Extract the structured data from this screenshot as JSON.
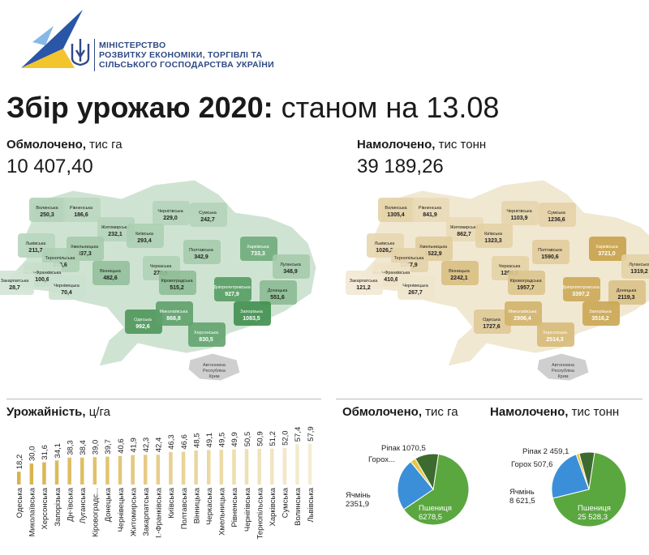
{
  "header": {
    "ministry_lines": [
      "МІНІСТЕРСТВО",
      "РОЗВИТКУ ЕКОНОМІКИ, ТОРГІВЛІ ТА",
      "СІЛЬСЬКОГО ГОСПОДАРСТВА УКРАЇНИ"
    ],
    "title_bold": "Збір урожаю 2020:",
    "title_rest": "станом на 13.08"
  },
  "colors": {
    "map_left": "#3f8f4e",
    "map_right": "#c8a24a",
    "yield": "#d8b24a",
    "wheat": "#5aa73f",
    "barley": "#3b8fd8",
    "peas": "#e8c640",
    "rapeseed": "#3d6b2f",
    "crimea": "#cfcfcf"
  },
  "left_map": {
    "label_bold": "Обмолочено,",
    "label_unit": "тис га",
    "total": "10 407,40",
    "crimea_lines": [
      "Автономна",
      "Республіка",
      "Крим"
    ],
    "regions": [
      {
        "name": "Волинська",
        "value": "250,3"
      },
      {
        "name": "Рівненська",
        "value": "186,6"
      },
      {
        "name": "Житомирська",
        "value": "232,1"
      },
      {
        "name": "Чернігівська",
        "value": "229,0"
      },
      {
        "name": "Сумська",
        "value": "242,7"
      },
      {
        "name": "Київська",
        "value": "293,4"
      },
      {
        "name": "Львівська",
        "value": "211,7"
      },
      {
        "name": "Хмельницька",
        "value": "337,3"
      },
      {
        "name": "Тернопільська",
        "value": "273,6"
      },
      {
        "name": "Івано-Франківська",
        "value": "100,6"
      },
      {
        "name": "Закарпатська",
        "value": "28,7"
      },
      {
        "name": "Чернівецька",
        "value": "70,4"
      },
      {
        "name": "Вінницька",
        "value": "482,6"
      },
      {
        "name": "Черкаська",
        "value": "270,6"
      },
      {
        "name": "Полтавська",
        "value": "342,9"
      },
      {
        "name": "Харківська",
        "value": "733,3"
      },
      {
        "name": "Луганська",
        "value": "348,9"
      },
      {
        "name": "Кіровоградська",
        "value": "515,2"
      },
      {
        "name": "Дніпропетровська",
        "value": "927,9"
      },
      {
        "name": "Донецька",
        "value": "551,6"
      },
      {
        "name": "Одеська",
        "value": "992,6"
      },
      {
        "name": "Миколаївська",
        "value": "868,8"
      },
      {
        "name": "Запорізька",
        "value": "1083,5"
      },
      {
        "name": "Херсонська",
        "value": "830,5"
      }
    ]
  },
  "right_map": {
    "label_bold": "Намолочено,",
    "label_unit": "тис тонн",
    "total": "39 189,26",
    "crimea_lines": [
      "Автономна",
      "Республіка",
      "Крим"
    ],
    "regions": [
      {
        "name": "Волинська",
        "value": "1305,4"
      },
      {
        "name": "Рівненська",
        "value": "841,9"
      },
      {
        "name": "Житомирська",
        "value": "862,7"
      },
      {
        "name": "Чернігівська",
        "value": "1103,9"
      },
      {
        "name": "Сумська",
        "value": "1236,6"
      },
      {
        "name": "Київська",
        "value": "1323,3"
      },
      {
        "name": "Львівська",
        "value": "1026,2"
      },
      {
        "name": "Хмельницька",
        "value": "1522,9"
      },
      {
        "name": "Тернопільська",
        "value": "1257,9"
      },
      {
        "name": "Івано-Франківська",
        "value": "410,6"
      },
      {
        "name": "Закарпатська",
        "value": "121,2"
      },
      {
        "name": "Чернівецька",
        "value": "267,7"
      },
      {
        "name": "Вінницька",
        "value": "2242,1"
      },
      {
        "name": "Черкаська",
        "value": "1295,1"
      },
      {
        "name": "Полтавська",
        "value": "1590,6"
      },
      {
        "name": "Харківська",
        "value": "3721,0"
      },
      {
        "name": "Луганська",
        "value": "1319,2"
      },
      {
        "name": "Кіровоградська",
        "value": "1957,7"
      },
      {
        "name": "Дніпропетровська",
        "value": "3397,2"
      },
      {
        "name": "Донецька",
        "value": "2119,3"
      },
      {
        "name": "Одеська",
        "value": "1727,6"
      },
      {
        "name": "Миколаївська",
        "value": "2906,4"
      },
      {
        "name": "Запорізька",
        "value": "3516,2"
      },
      {
        "name": "Херсонська",
        "value": "2514,3"
      }
    ]
  },
  "chart_data": [
    {
      "type": "bar",
      "title_bold": "Урожайність,",
      "title_unit": "ц/га",
      "categories": [
        "Одеська",
        "Миколаївська",
        "Херсонська",
        "Запорізька",
        "Дн-ївська",
        "Луганська",
        "Кіровоградс...",
        "Донецька",
        "Чернівецька",
        "Житомирська",
        "Закарпатська",
        "І.-Франківська",
        "Київська",
        "Полтавська",
        "Вінницька",
        "Черкаська",
        "Хмельницька",
        "Рівненська",
        "Чернігівська",
        "Тернопільська",
        "Харківська",
        "Сумська",
        "Волинська",
        "Львівська"
      ],
      "values": [
        18.2,
        30.0,
        31.6,
        34.1,
        38.3,
        38.4,
        39.0,
        39.7,
        40.6,
        41.9,
        42.3,
        42.4,
        46.3,
        46.6,
        48.5,
        49.1,
        49.5,
        49.9,
        50.5,
        50.9,
        51.2,
        52.0,
        57.4,
        57.9
      ],
      "value_labels": [
        "18,2",
        "30,0",
        "31,6",
        "34,1",
        "38,3",
        "38,4",
        "39,0",
        "39,7",
        "40,6",
        "41,9",
        "42,3",
        "42,4",
        "46,3",
        "46,6",
        "48,5",
        "49,1",
        "49,5",
        "49,9",
        "50,5",
        "50,9",
        "51,2",
        "52,0",
        "57,4",
        "57,9"
      ],
      "ylim": [
        0,
        60
      ]
    },
    {
      "type": "pie",
      "title_bold": "Обмолочено,",
      "title_unit": "тис га",
      "slices": [
        {
          "label": "Пшениця",
          "value": 6278.5,
          "value_label": "6278,5",
          "color": "#5aa73f"
        },
        {
          "label": "Ячмінь",
          "value": 2351.9,
          "value_label": "2351,9",
          "color": "#3b8fd8"
        },
        {
          "label": "Горох...",
          "value": 250,
          "value_label": "",
          "color": "#e8c640"
        },
        {
          "label": "Ріпак",
          "value": 1070.5,
          "value_label": "1070,5",
          "color": "#3d6b2f"
        }
      ]
    },
    {
      "type": "pie",
      "title_bold": "Намолочено,",
      "title_unit": "тис тонн",
      "slices": [
        {
          "label": "Пшениця",
          "value": 25528.3,
          "value_label": "25 528,3",
          "color": "#5aa73f"
        },
        {
          "label": "Ячмінь",
          "value": 8621.5,
          "value_label": "8 621,5",
          "color": "#3b8fd8"
        },
        {
          "label": "Горох",
          "value": 507.6,
          "value_label": "507,6",
          "color": "#e8c640"
        },
        {
          "label": "Ріпак",
          "value": 2459.1,
          "value_label": "2 459,1",
          "color": "#3d6b2f"
        }
      ]
    }
  ]
}
